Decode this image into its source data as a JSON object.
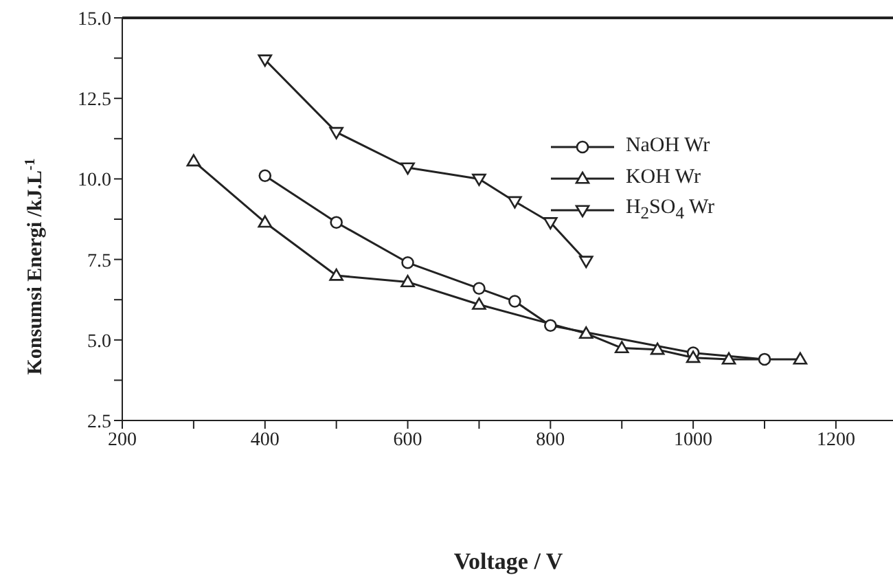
{
  "chart_data": {
    "type": "line",
    "xlabel": "Voltage / V",
    "ylabel": "Konsumsi Energi /kJ.L$^{-1}$",
    "xlim": [
      200,
      1280
    ],
    "ylim": [
      2.5,
      15
    ],
    "xticks": [
      200,
      {
        "value": 300,
        "label": null
      },
      400,
      {
        "value": 500,
        "label": null
      },
      600,
      {
        "value": 700,
        "label": null
      },
      800,
      {
        "value": 900,
        "label": null
      },
      1000,
      {
        "value": 1100,
        "label": null
      },
      1200
    ],
    "yticks": [
      {
        "value": 2.5,
        "label": "2.5"
      },
      {
        "value": 3.75,
        "label": null
      },
      {
        "value": 5,
        "label": "5.0"
      },
      {
        "value": 6.25,
        "label": null
      },
      {
        "value": 7.5,
        "label": "7.5"
      },
      {
        "value": 8.75,
        "label": null
      },
      {
        "value": 10,
        "label": "10.0"
      },
      {
        "value": 11.25,
        "label": null
      },
      {
        "value": 12.5,
        "label": "12.5"
      },
      {
        "value": 13.75,
        "label": null
      },
      {
        "value": 15,
        "label": "15.0"
      }
    ],
    "grid": false,
    "legend": "top right",
    "line_style": "solid",
    "series": [
      {
        "name": "NaOH Wr",
        "color": "#222222",
        "marker": "circle",
        "x": [
          400,
          500,
          600,
          700,
          750,
          800,
          1000,
          1100
        ],
        "values": [
          10.1,
          8.65,
          7.4,
          6.6,
          6.2,
          5.45,
          4.6,
          4.4
        ]
      },
      {
        "name": "KOH Wr",
        "color": "#222222",
        "marker": "triangle",
        "x": [
          300,
          400,
          500,
          600,
          700,
          850,
          900,
          950,
          1000,
          1050,
          1150
        ],
        "values": [
          10.55,
          8.65,
          7.0,
          6.8,
          6.1,
          5.2,
          4.75,
          4.7,
          4.45,
          4.4,
          4.4
        ]
      },
      {
        "name": "H$_{2}$SO$_{4}$ Wr",
        "color": "#222222",
        "marker": "triangle-down",
        "x": [
          400,
          500,
          600,
          700,
          750,
          800,
          850
        ],
        "values": [
          13.7,
          11.45,
          10.35,
          10.0,
          9.3,
          8.65,
          7.45
        ]
      }
    ]
  }
}
